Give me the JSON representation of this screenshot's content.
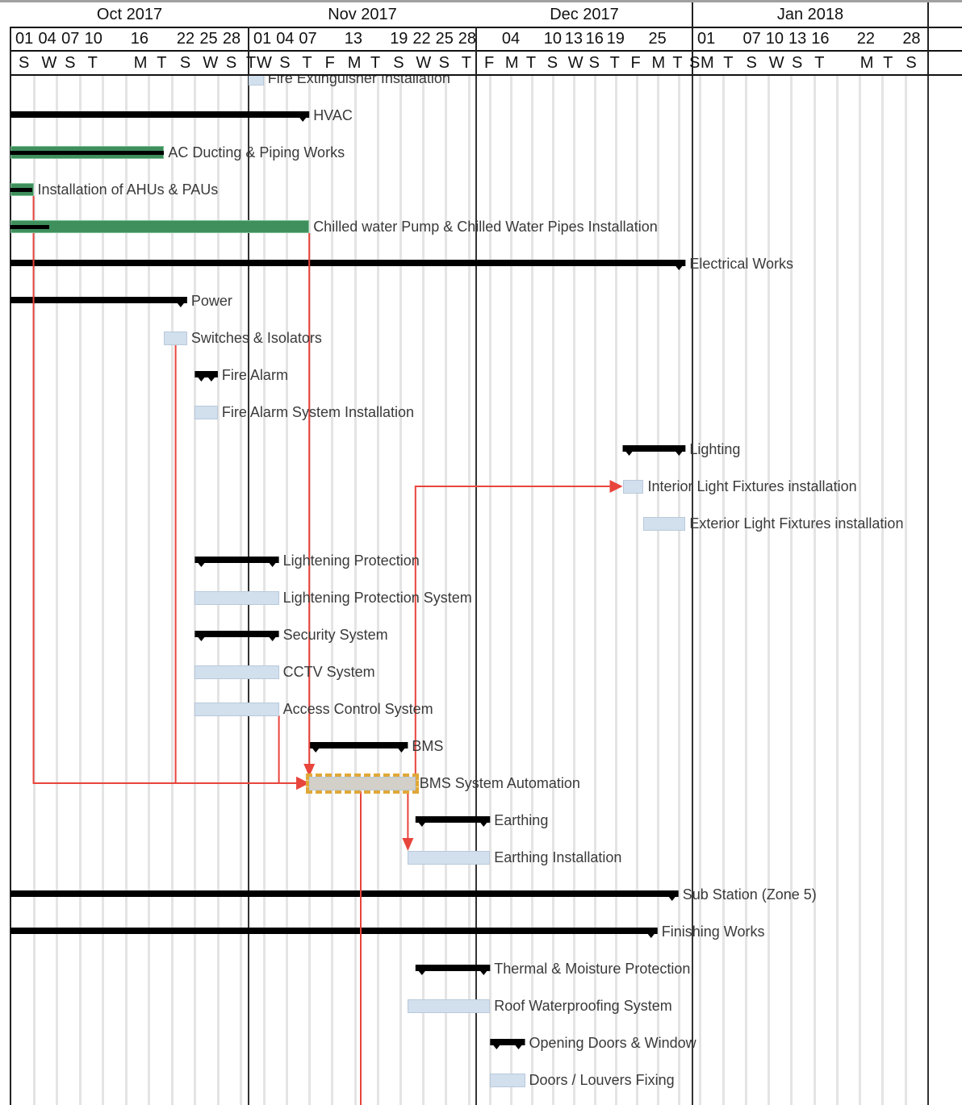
{
  "timescale": {
    "months": [
      "Oct 2017",
      "Nov 2017",
      "Dec 2017",
      "Jan 2018"
    ],
    "day_numbers": [
      {
        "date": "2017-10-01",
        "label": "01"
      },
      {
        "date": "2017-10-04",
        "label": "04"
      },
      {
        "date": "2017-10-07",
        "label": "07"
      },
      {
        "date": "2017-10-10",
        "label": "10"
      },
      {
        "date": "2017-10-16",
        "label": "16"
      },
      {
        "date": "2017-10-22",
        "label": "22"
      },
      {
        "date": "2017-10-25",
        "label": "25"
      },
      {
        "date": "2017-10-28",
        "label": "28"
      },
      {
        "date": "2017-11-01",
        "label": "01"
      },
      {
        "date": "2017-11-04",
        "label": "04"
      },
      {
        "date": "2017-11-07",
        "label": "07"
      },
      {
        "date": "2017-11-13",
        "label": "13"
      },
      {
        "date": "2017-11-19",
        "label": "19"
      },
      {
        "date": "2017-11-22",
        "label": "22"
      },
      {
        "date": "2017-11-25",
        "label": "25"
      },
      {
        "date": "2017-11-28",
        "label": "28"
      },
      {
        "date": "2017-12-04",
        "label": "04"
      },
      {
        "date": "2017-12-10",
        "label": "10"
      },
      {
        "date": "2017-12-13",
        "label": "13"
      },
      {
        "date": "2017-12-16",
        "label": "16"
      },
      {
        "date": "2017-12-19",
        "label": "19"
      },
      {
        "date": "2017-12-25",
        "label": "25"
      },
      {
        "date": "2018-01-01",
        "label": "01"
      },
      {
        "date": "2018-01-07",
        "label": "07"
      },
      {
        "date": "2018-01-10",
        "label": "10"
      },
      {
        "date": "2018-01-13",
        "label": "13"
      },
      {
        "date": "2018-01-16",
        "label": "16"
      },
      {
        "date": "2018-01-22",
        "label": "22"
      },
      {
        "date": "2018-01-28",
        "label": "28"
      }
    ],
    "day_letters": [
      {
        "date": "2017-10-01",
        "label": "S"
      },
      {
        "date": "2017-10-04",
        "label": "W"
      },
      {
        "date": "2017-10-07",
        "label": "S"
      },
      {
        "date": "2017-10-10",
        "label": "T"
      },
      {
        "date": "2017-10-16",
        "label": "M"
      },
      {
        "date": "2017-10-19",
        "label": "T"
      },
      {
        "date": "2017-10-22",
        "label": "S"
      },
      {
        "date": "2017-10-25",
        "label": "W"
      },
      {
        "date": "2017-10-28",
        "label": "S"
      },
      {
        "date": "2017-10-31",
        "label": "T"
      },
      {
        "date": "2017-11-01",
        "label": "W"
      },
      {
        "date": "2017-11-04",
        "label": "S"
      },
      {
        "date": "2017-11-07",
        "label": "T"
      },
      {
        "date": "2017-11-10",
        "label": "F"
      },
      {
        "date": "2017-11-13",
        "label": "M"
      },
      {
        "date": "2017-11-16",
        "label": "T"
      },
      {
        "date": "2017-11-19",
        "label": "S"
      },
      {
        "date": "2017-11-22",
        "label": "W"
      },
      {
        "date": "2017-11-25",
        "label": "S"
      },
      {
        "date": "2017-11-28",
        "label": "T"
      },
      {
        "date": "2017-12-01",
        "label": "F"
      },
      {
        "date": "2017-12-04",
        "label": "M"
      },
      {
        "date": "2017-12-07",
        "label": "T"
      },
      {
        "date": "2017-12-10",
        "label": "S"
      },
      {
        "date": "2017-12-13",
        "label": "W"
      },
      {
        "date": "2017-12-16",
        "label": "S"
      },
      {
        "date": "2017-12-19",
        "label": "T"
      },
      {
        "date": "2017-12-22",
        "label": "F"
      },
      {
        "date": "2017-12-25",
        "label": "M"
      },
      {
        "date": "2017-12-28",
        "label": "T"
      },
      {
        "date": "2017-12-31",
        "label": "S"
      },
      {
        "date": "2018-01-01",
        "label": "M"
      },
      {
        "date": "2018-01-04",
        "label": "T"
      },
      {
        "date": "2018-01-07",
        "label": "S"
      },
      {
        "date": "2018-01-10",
        "label": "W"
      },
      {
        "date": "2018-01-13",
        "label": "S"
      },
      {
        "date": "2018-01-16",
        "label": "T"
      },
      {
        "date": "2018-01-22",
        "label": "M"
      },
      {
        "date": "2018-01-25",
        "label": "T"
      },
      {
        "date": "2018-01-28",
        "label": "S"
      }
    ]
  },
  "colors": {
    "task": "#d2e0ee",
    "progress": "#3e8f5c",
    "summary": "#000000",
    "dependency": "#e8453c",
    "selection": "#e0a838"
  },
  "tasks": [
    {
      "name": "Fire Extinguisher Installation",
      "type": "task",
      "start": "2017-11-01",
      "end": "2017-11-03"
    },
    {
      "name": "HVAC",
      "type": "summary",
      "start": "2017-10-01",
      "end": "2017-11-09"
    },
    {
      "name": "AC Ducting & Piping Works",
      "type": "progress",
      "start": "2017-10-01",
      "end": "2017-10-21",
      "percent_complete": 100
    },
    {
      "name": "Installation of AHUs & PAUs",
      "type": "progress",
      "start": "2017-10-01",
      "end": "2017-10-04",
      "percent_complete": 95
    },
    {
      "name": "Chilled water Pump  & Chilled Water Pipes Installation",
      "type": "progress",
      "start": "2017-10-01",
      "end": "2017-11-09",
      "percent_complete": 13
    },
    {
      "name": "Electrical Works",
      "type": "summary",
      "start": "2017-10-01",
      "end": "2017-12-31"
    },
    {
      "name": "Power",
      "type": "summary",
      "start": "2017-10-01",
      "end": "2017-10-24"
    },
    {
      "name": "Switches & Isolators",
      "type": "task",
      "start": "2017-10-21",
      "end": "2017-10-24"
    },
    {
      "name": "Fire Alarm",
      "type": "summary",
      "start": "2017-10-25",
      "end": "2017-10-28"
    },
    {
      "name": "Fire Alarm System Installation",
      "type": "task",
      "start": "2017-10-25",
      "end": "2017-10-28"
    },
    {
      "name": "Lighting",
      "type": "summary",
      "start": "2017-12-22",
      "end": "2017-12-31"
    },
    {
      "name": "Interior Light Fixtures installation",
      "type": "task",
      "start": "2017-12-22",
      "end": "2017-12-25"
    },
    {
      "name": "Exterior  Light Fixtures installation",
      "type": "task",
      "start": "2017-12-25",
      "end": "2017-12-31"
    },
    {
      "name": "Lightening Protection",
      "type": "summary",
      "start": "2017-10-25",
      "end": "2017-11-05"
    },
    {
      "name": "Lightening Protection System",
      "type": "task",
      "start": "2017-10-25",
      "end": "2017-11-05"
    },
    {
      "name": "Security System",
      "type": "summary",
      "start": "2017-10-25",
      "end": "2017-11-05"
    },
    {
      "name": "CCTV System",
      "type": "task",
      "start": "2017-10-25",
      "end": "2017-11-05"
    },
    {
      "name": "Access Control System",
      "type": "task",
      "start": "2017-10-25",
      "end": "2017-11-05"
    },
    {
      "name": "BMS",
      "type": "summary",
      "start": "2017-11-09",
      "end": "2017-11-22"
    },
    {
      "name": "BMS System Automation",
      "type": "task",
      "start": "2017-11-09",
      "end": "2017-11-23",
      "selected": true
    },
    {
      "name": "Earthing",
      "type": "summary",
      "start": "2017-11-23",
      "end": "2017-12-03"
    },
    {
      "name": "Earthing Installation",
      "type": "task",
      "start": "2017-11-22",
      "end": "2017-12-03"
    },
    {
      "name": "Sub Station (Zone 5)",
      "type": "summary",
      "start": "2017-10-01",
      "end": "2017-12-30"
    },
    {
      "name": "Finishing Works",
      "type": "summary",
      "start": "2017-10-01",
      "end": "2017-12-27"
    },
    {
      "name": "Thermal & Moisture Protection",
      "type": "summary",
      "start": "2017-11-23",
      "end": "2017-12-03"
    },
    {
      "name": "Roof Waterproofing System",
      "type": "task",
      "start": "2017-11-22",
      "end": "2017-12-03"
    },
    {
      "name": "Opening Doors & Window",
      "type": "summary",
      "start": "2017-12-03",
      "end": "2017-12-08"
    },
    {
      "name": "Doors / Louvers Fixing",
      "type": "task",
      "start": "2017-12-03",
      "end": "2017-12-08"
    }
  ],
  "dependencies": [
    {
      "from": 3,
      "to": 19
    },
    {
      "from": 7,
      "to": 19
    },
    {
      "from": 17,
      "to": 19
    },
    {
      "from": 4,
      "to": 19
    },
    {
      "from": 19,
      "to": 11
    },
    {
      "from": 19,
      "to": 21
    }
  ]
}
